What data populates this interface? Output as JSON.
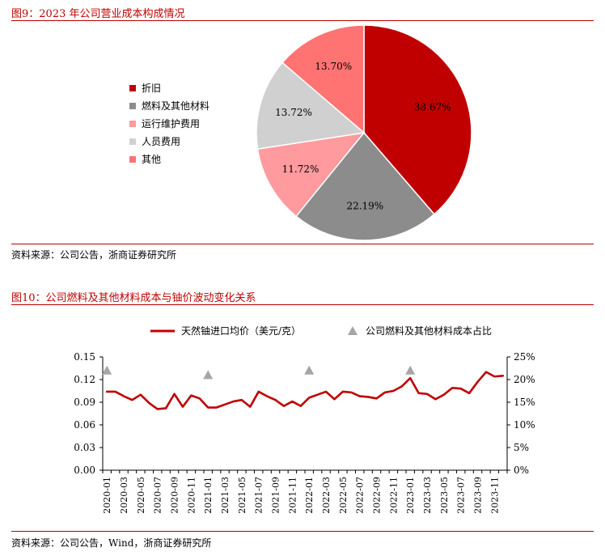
{
  "figure1": {
    "title": "图9：2023 年公司营业成本构成情况",
    "source": "资料来源：公司公告，浙商证券研究所"
  },
  "figure2": {
    "title": "图10：公司燃料及其他材料成本与铀价波动变化关系",
    "source": "资料来源：公司公告，Wind，浙商证券研究所"
  },
  "colors": {
    "accent": "#c00000",
    "pie": [
      "#c00000",
      "#8c8c8c",
      "#ff9a9e",
      "#d0d0d0",
      "#ff7373"
    ]
  },
  "chart_data": [
    {
      "type": "pie",
      "title": "2023 年公司营业成本构成情况",
      "legend_position": "left",
      "slices": [
        {
          "label": "折旧",
          "value": 38.67,
          "text": "38.67%"
        },
        {
          "label": "燃料及其他材料",
          "value": 22.19,
          "text": "22.19%"
        },
        {
          "label": "运行维护费用",
          "value": 11.72,
          "text": "11.72%"
        },
        {
          "label": "人员费用",
          "value": 13.72,
          "text": "13.72%"
        },
        {
          "label": "其他",
          "value": 13.7,
          "text": "13.70%"
        }
      ]
    },
    {
      "type": "line",
      "legend_position": "top",
      "grid": false,
      "x": [
        "2020-01",
        "2020-02",
        "2020-03",
        "2020-04",
        "2020-05",
        "2020-06",
        "2020-07",
        "2020-08",
        "2020-09",
        "2020-10",
        "2020-11",
        "2020-12",
        "2021-01",
        "2021-02",
        "2021-03",
        "2021-04",
        "2021-05",
        "2021-06",
        "2021-07",
        "2021-08",
        "2021-09",
        "2021-10",
        "2021-11",
        "2021-12",
        "2022-01",
        "2022-02",
        "2022-03",
        "2022-04",
        "2022-05",
        "2022-06",
        "2022-07",
        "2022-08",
        "2022-09",
        "2022-10",
        "2022-11",
        "2022-12",
        "2023-01",
        "2023-02",
        "2023-03",
        "2023-04",
        "2023-05",
        "2023-06",
        "2023-07",
        "2023-08",
        "2023-09",
        "2023-10",
        "2023-11",
        "2023-12"
      ],
      "x_tick_labels": [
        "2020-01",
        "2020-03",
        "2020-05",
        "2020-07",
        "2020-09",
        "2020-11",
        "2021-01",
        "2021-03",
        "2021-05",
        "2021-07",
        "2021-09",
        "2021-11",
        "2022-01",
        "2022-03",
        "2022-05",
        "2022-07",
        "2022-09",
        "2022-11",
        "2023-01",
        "2023-03",
        "2023-05",
        "2023-07",
        "2023-09",
        "2023-11"
      ],
      "y_left": {
        "ylim": [
          0,
          0.15
        ],
        "ticks": [
          "0.00",
          "0.03",
          "0.06",
          "0.09",
          "0.12",
          "0.15"
        ]
      },
      "y_right": {
        "ylim": [
          0,
          25
        ],
        "ticks": [
          "0%",
          "5%",
          "10%",
          "15%",
          "20%",
          "25%"
        ]
      },
      "series": [
        {
          "name": "天然铀进口均价（美元/克）",
          "axis": "left",
          "color": "#c00000",
          "values": [
            0.104,
            0.104,
            0.098,
            0.093,
            0.1,
            0.089,
            0.081,
            0.082,
            0.101,
            0.084,
            0.099,
            0.095,
            0.083,
            0.083,
            0.087,
            0.091,
            0.093,
            0.084,
            0.104,
            0.098,
            0.093,
            0.085,
            0.091,
            0.085,
            0.096,
            0.1,
            0.104,
            0.094,
            0.104,
            0.103,
            0.098,
            0.097,
            0.095,
            0.103,
            0.105,
            0.111,
            0.122,
            0.102,
            0.101,
            0.094,
            0.1,
            0.109,
            0.108,
            0.102,
            0.117,
            0.13,
            0.124,
            0.125
          ]
        },
        {
          "name": "公司燃料及其他材料成本占比",
          "axis": "right",
          "marker": "triangle",
          "color": "#a6a6a6",
          "points": [
            {
              "x": "2020-01",
              "y": 22.0
            },
            {
              "x": "2021-01",
              "y": 21.0
            },
            {
              "x": "2022-01",
              "y": 22.0
            },
            {
              "x": "2023-01",
              "y": 22.0
            }
          ]
        }
      ]
    }
  ]
}
